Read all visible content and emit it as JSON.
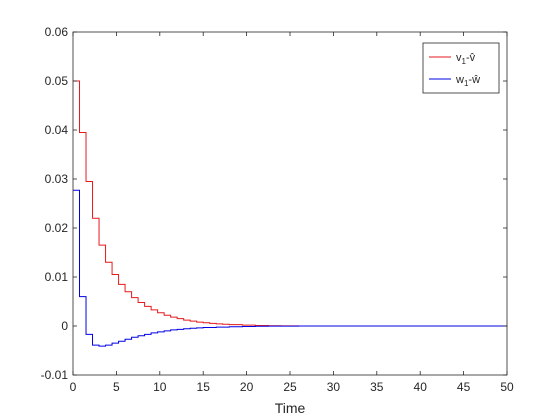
{
  "chart_data": {
    "type": "line",
    "title": "",
    "xlabel": "Time",
    "ylabel": "",
    "xlim": [
      0,
      50
    ],
    "ylim": [
      -0.01,
      0.06
    ],
    "xticks": [
      0,
      5,
      10,
      15,
      20,
      25,
      30,
      35,
      40,
      45,
      50
    ],
    "yticks": [
      -0.01,
      0,
      0.01,
      0.02,
      0.03,
      0.04,
      0.05,
      0.06
    ],
    "xtick_labels": [
      "0",
      "5",
      "10",
      "15",
      "20",
      "25",
      "30",
      "35",
      "40",
      "45",
      "50"
    ],
    "ytick_labels": [
      "-0.01",
      "0",
      "0.01",
      "0.02",
      "0.03",
      "0.04",
      "0.05",
      "0.06"
    ],
    "grid": false,
    "legend_position": "top-right",
    "step": true,
    "series": [
      {
        "name": "v1-v̂",
        "legend": {
          "main": "v",
          "sub": "1",
          "tail": "-v̂"
        },
        "color": "#e41a1c",
        "x": [
          0,
          0.75,
          1.5,
          2.25,
          3.0,
          3.75,
          4.5,
          5.25,
          6.0,
          6.75,
          7.5,
          8.25,
          9.0,
          9.75,
          10.5,
          11.25,
          12.0,
          12.75,
          13.5,
          14.25,
          15.0,
          15.75,
          16.5,
          17.25,
          18.0,
          19.5,
          21.0,
          22.5,
          24.0,
          26.0,
          50
        ],
        "y": [
          0.05,
          0.0395,
          0.0295,
          0.022,
          0.0165,
          0.013,
          0.0105,
          0.0085,
          0.007,
          0.0058,
          0.0048,
          0.004,
          0.0033,
          0.0027,
          0.0022,
          0.0018,
          0.0015,
          0.0012,
          0.001,
          0.0008,
          0.00065,
          0.00053,
          0.00043,
          0.00035,
          0.00028,
          0.00018,
          0.00011,
          6e-05,
          3e-05,
          1e-05,
          0
        ]
      },
      {
        "name": "w1-ŵ",
        "legend": {
          "main": "w",
          "sub": "1",
          "tail": "-ŵ"
        },
        "color": "#0000e6",
        "x": [
          0,
          0.75,
          1.5,
          2.25,
          3.0,
          3.75,
          4.5,
          5.25,
          6.0,
          6.75,
          7.5,
          8.25,
          9.0,
          9.75,
          10.5,
          11.25,
          12.0,
          12.75,
          13.5,
          14.25,
          15.0,
          16.5,
          18.0,
          19.5,
          21.0,
          22.5,
          24.0,
          26.0,
          50
        ],
        "y": [
          0.0277,
          0.006,
          -0.0017,
          -0.0039,
          -0.0041,
          -0.0039,
          -0.0035,
          -0.0031,
          -0.0027,
          -0.0023,
          -0.002,
          -0.0017,
          -0.0014,
          -0.0012,
          -0.001,
          -0.0008,
          -0.00068,
          -0.00056,
          -0.00046,
          -0.00038,
          -0.00031,
          -0.00022,
          -0.00015,
          -0.0001,
          -6e-05,
          -3e-05,
          -1.5e-05,
          -5e-06,
          0
        ]
      }
    ]
  }
}
